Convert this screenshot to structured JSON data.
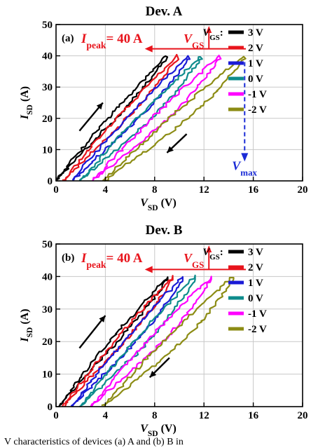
{
  "caption": "V characteristics of devices (a) A and (b) B in",
  "chart_data": [
    {
      "type": "line",
      "panel": "(a)",
      "title": "Dev. A",
      "xlabel_main": "V",
      "xlabel_sub": "SD",
      "xlabel_unit": " (V)",
      "ylabel_main": "I",
      "ylabel_sub": "SD",
      "ylabel_unit": " (A)",
      "xlim": [
        0,
        20
      ],
      "ylim": [
        0,
        50
      ],
      "xticks": [
        0,
        4,
        8,
        12,
        16,
        20
      ],
      "yticks": [
        0,
        10,
        20,
        30,
        40,
        50
      ],
      "legend_title": "V",
      "legend_title_sub": "GS",
      "legend_title_suffix": ":",
      "legend_placement": "top-right",
      "annotations": {
        "ipeak_main": "I",
        "ipeak_sub": "peak",
        "ipeak_value": "= 40 A",
        "vgs_main": "V",
        "vgs_sub": "GS",
        "vmax_main": "V",
        "vmax_sub": "max"
      },
      "series": [
        {
          "name": "3 V",
          "color": "#000000",
          "turn_on": 0.0,
          "vmax": 9.0
        },
        {
          "name": "2 V",
          "color": "#e8141c",
          "turn_on": 0.6,
          "vmax": 9.9
        },
        {
          "name": "1 V",
          "color": "#1a1ad6",
          "turn_on": 1.3,
          "vmax": 10.8
        },
        {
          "name": "0 V",
          "color": "#0e8c8c",
          "turn_on": 2.0,
          "vmax": 11.8
        },
        {
          "name": "-1 V",
          "color": "#ff00ff",
          "turn_on": 3.0,
          "vmax": 13.3
        },
        {
          "name": "-2 V",
          "color": "#8c8c14",
          "turn_on": 3.9,
          "vmax": 15.3
        }
      ]
    },
    {
      "type": "line",
      "panel": "(b)",
      "title": "Dev. B",
      "xlabel_main": "V",
      "xlabel_sub": "SD",
      "xlabel_unit": " (V)",
      "ylabel_main": "I",
      "ylabel_sub": "SD",
      "ylabel_unit": " (A)",
      "xlim": [
        0,
        20
      ],
      "ylim": [
        0,
        50
      ],
      "xticks": [
        0,
        4,
        8,
        12,
        16,
        20
      ],
      "yticks": [
        0,
        10,
        20,
        30,
        40,
        50
      ],
      "legend_title": "V",
      "legend_title_sub": "GS",
      "legend_title_suffix": ":",
      "legend_placement": "top-right",
      "annotations": {
        "ipeak_main": "I",
        "ipeak_sub": "peak",
        "ipeak_value": "= 40 A",
        "vgs_main": "V",
        "vgs_sub": "GS"
      },
      "series": [
        {
          "name": "3 V",
          "color": "#000000",
          "turn_on": 0.2,
          "vmax": 9.1
        },
        {
          "name": "2 V",
          "color": "#e8141c",
          "turn_on": 0.6,
          "vmax": 9.5
        },
        {
          "name": "1 V",
          "color": "#1a1ad6",
          "turn_on": 1.3,
          "vmax": 10.3
        },
        {
          "name": "0 V",
          "color": "#0e8c8c",
          "turn_on": 2.0,
          "vmax": 11.3
        },
        {
          "name": "-1 V",
          "color": "#ff00ff",
          "turn_on": 2.8,
          "vmax": 12.6
        },
        {
          "name": "-2 V",
          "color": "#8c8c14",
          "turn_on": 3.8,
          "vmax": 14.4
        }
      ]
    }
  ]
}
